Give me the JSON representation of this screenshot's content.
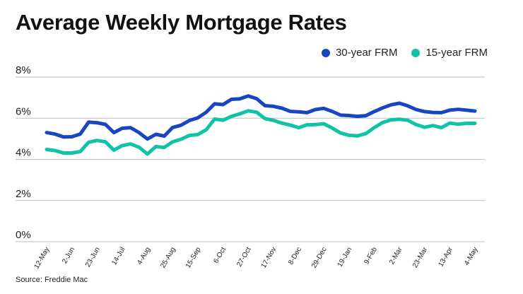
{
  "title": "Average Weekly Mortgage Rates",
  "source": "Source: Freddie Mac",
  "chart_data": {
    "type": "line",
    "title": "Average Weekly Mortgage Rates",
    "xlabel": "",
    "ylabel": "",
    "ylim": [
      0,
      8
    ],
    "y_ticks": [
      "0%",
      "2%",
      "4%",
      "6%",
      "8%"
    ],
    "grid": true,
    "legend_position": "top-right",
    "tick_labels": [
      "12-May",
      "2-Jun",
      "23-Jun",
      "14-Jul",
      "4-Aug",
      "25-Aug",
      "15-Sep",
      "6-Oct",
      "27-Oct",
      "17-Nov",
      "8-Dec",
      "29-Dec",
      "19-Jan",
      "9-Feb",
      "2-Mar",
      "23-Mar",
      "13-Apr",
      "4-May"
    ],
    "tick_indices": [
      0,
      3,
      6,
      9,
      12,
      15,
      18,
      21,
      24,
      27,
      30,
      33,
      36,
      39,
      42,
      45,
      48,
      51
    ],
    "series": [
      {
        "name": "30-year FRM",
        "color": "#1846c0",
        "values": [
          5.3,
          5.23,
          5.09,
          5.1,
          5.23,
          5.81,
          5.78,
          5.7,
          5.3,
          5.51,
          5.54,
          5.3,
          4.99,
          5.22,
          5.13,
          5.55,
          5.66,
          5.89,
          6.02,
          6.29,
          6.7,
          6.66,
          6.92,
          6.94,
          7.08,
          6.95,
          6.61,
          6.58,
          6.49,
          6.33,
          6.31,
          6.27,
          6.42,
          6.48,
          6.33,
          6.15,
          6.13,
          6.09,
          6.12,
          6.32,
          6.5,
          6.65,
          6.73,
          6.6,
          6.42,
          6.32,
          6.28,
          6.27,
          6.39,
          6.43,
          6.39,
          6.35
        ]
      },
      {
        "name": "15-year FRM",
        "color": "#10c3a6",
        "values": [
          4.48,
          4.43,
          4.31,
          4.31,
          4.38,
          4.83,
          4.92,
          4.85,
          4.45,
          4.67,
          4.75,
          4.59,
          4.26,
          4.62,
          4.58,
          4.85,
          4.98,
          5.16,
          5.21,
          5.44,
          5.96,
          5.9,
          6.09,
          6.21,
          6.36,
          6.29,
          5.98,
          5.9,
          5.76,
          5.67,
          5.54,
          5.68,
          5.69,
          5.73,
          5.52,
          5.28,
          5.17,
          5.14,
          5.25,
          5.54,
          5.79,
          5.92,
          5.95,
          5.9,
          5.69,
          5.56,
          5.64,
          5.54,
          5.76,
          5.71,
          5.75,
          5.75
        ]
      }
    ]
  }
}
